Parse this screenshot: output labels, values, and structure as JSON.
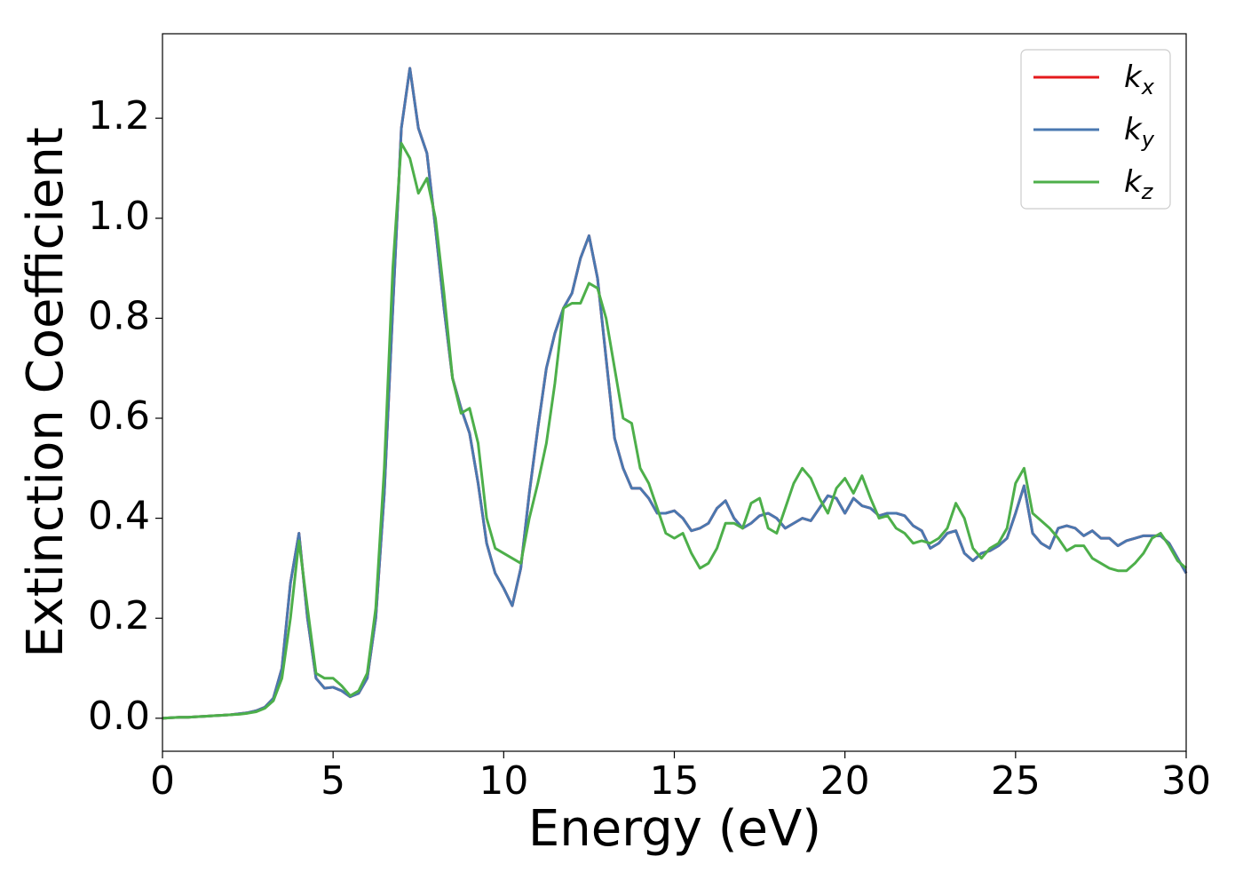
{
  "chart_data": {
    "type": "line",
    "xlabel": "Energy (eV)",
    "ylabel": "Extinction Coefficient",
    "xlim": [
      0,
      30
    ],
    "ylim": [
      -0.066,
      1.369
    ],
    "xticks": [
      0,
      5,
      10,
      15,
      20,
      25,
      30
    ],
    "yticks": [
      {
        "value": 0,
        "label": "0.0"
      },
      0.2,
      0.4,
      0.6,
      0.8,
      {
        "value": 1,
        "label": "1.0"
      },
      1.2
    ],
    "legend": "upper right",
    "grid": false,
    "x": [
      0,
      0.25,
      0.5,
      0.75,
      1,
      1.25,
      1.5,
      1.75,
      2,
      2.25,
      2.5,
      2.75,
      3,
      3.25,
      3.5,
      3.75,
      4,
      4.25,
      4.5,
      4.75,
      5,
      5.25,
      5.5,
      5.75,
      6,
      6.25,
      6.5,
      6.75,
      7,
      7.25,
      7.5,
      7.75,
      8,
      8.25,
      8.5,
      8.75,
      9,
      9.25,
      9.5,
      9.75,
      10,
      10.25,
      10.5,
      10.75,
      11,
      11.25,
      11.5,
      11.75,
      12,
      12.25,
      12.5,
      12.75,
      13,
      13.25,
      13.5,
      13.75,
      14,
      14.25,
      14.5,
      14.75,
      15,
      15.25,
      15.5,
      15.75,
      16,
      16.25,
      16.5,
      16.75,
      17,
      17.25,
      17.5,
      17.75,
      18,
      18.25,
      18.5,
      18.75,
      19,
      19.25,
      19.5,
      19.75,
      20,
      20.25,
      20.5,
      20.75,
      21,
      21.25,
      21.5,
      21.75,
      22,
      22.25,
      22.5,
      22.75,
      23,
      23.25,
      23.5,
      23.75,
      24,
      24.25,
      24.5,
      24.75,
      25,
      25.25,
      25.5,
      25.75,
      26,
      26.25,
      26.5,
      26.75,
      27,
      27.25,
      27.5,
      27.75,
      28,
      28.25,
      28.5,
      28.75,
      29,
      29.25,
      29.5,
      29.75,
      30
    ],
    "series": [
      {
        "name": "kx",
        "color": "#e41a1c",
        "values": [
          0,
          0.001,
          0.002,
          0.002,
          0.003,
          0.004,
          0.005,
          0.006,
          0.007,
          0.009,
          0.011,
          0.015,
          0.022,
          0.04,
          0.1,
          0.27,
          0.37,
          0.2,
          0.08,
          0.06,
          0.062,
          0.055,
          0.043,
          0.05,
          0.08,
          0.2,
          0.45,
          0.82,
          1.18,
          1.3,
          1.18,
          1.13,
          0.98,
          0.82,
          0.68,
          0.62,
          0.57,
          0.47,
          0.35,
          0.29,
          0.26,
          0.225,
          0.3,
          0.45,
          0.58,
          0.7,
          0.77,
          0.82,
          0.85,
          0.92,
          0.965,
          0.88,
          0.72,
          0.56,
          0.5,
          0.46,
          0.46,
          0.44,
          0.41,
          0.41,
          0.415,
          0.4,
          0.375,
          0.38,
          0.39,
          0.42,
          0.435,
          0.4,
          0.38,
          0.39,
          0.405,
          0.41,
          0.4,
          0.38,
          0.39,
          0.4,
          0.395,
          0.42,
          0.445,
          0.44,
          0.41,
          0.44,
          0.425,
          0.42,
          0.405,
          0.41,
          0.41,
          0.405,
          0.385,
          0.375,
          0.34,
          0.35,
          0.37,
          0.375,
          0.33,
          0.315,
          0.33,
          0.335,
          0.345,
          0.36,
          0.41,
          0.465,
          0.37,
          0.35,
          0.34,
          0.38,
          0.385,
          0.38,
          0.365,
          0.375,
          0.36,
          0.36,
          0.345,
          0.355,
          0.36,
          0.365,
          0.365,
          0.365,
          0.35,
          0.32,
          0.29
        ]
      },
      {
        "name": "ky",
        "color": "#4a78b0",
        "values": [
          0,
          0.001,
          0.002,
          0.002,
          0.003,
          0.004,
          0.005,
          0.006,
          0.007,
          0.009,
          0.011,
          0.015,
          0.022,
          0.04,
          0.1,
          0.27,
          0.37,
          0.2,
          0.08,
          0.06,
          0.062,
          0.055,
          0.043,
          0.05,
          0.08,
          0.2,
          0.45,
          0.82,
          1.18,
          1.3,
          1.18,
          1.13,
          0.98,
          0.82,
          0.68,
          0.62,
          0.57,
          0.47,
          0.35,
          0.29,
          0.26,
          0.225,
          0.3,
          0.45,
          0.58,
          0.7,
          0.77,
          0.82,
          0.85,
          0.92,
          0.965,
          0.88,
          0.72,
          0.56,
          0.5,
          0.46,
          0.46,
          0.44,
          0.41,
          0.41,
          0.415,
          0.4,
          0.375,
          0.38,
          0.39,
          0.42,
          0.435,
          0.4,
          0.38,
          0.39,
          0.405,
          0.41,
          0.4,
          0.38,
          0.39,
          0.4,
          0.395,
          0.42,
          0.445,
          0.44,
          0.41,
          0.44,
          0.425,
          0.42,
          0.405,
          0.41,
          0.41,
          0.405,
          0.385,
          0.375,
          0.34,
          0.35,
          0.37,
          0.375,
          0.33,
          0.315,
          0.33,
          0.335,
          0.345,
          0.36,
          0.41,
          0.465,
          0.37,
          0.35,
          0.34,
          0.38,
          0.385,
          0.38,
          0.365,
          0.375,
          0.36,
          0.36,
          0.345,
          0.355,
          0.36,
          0.365,
          0.365,
          0.365,
          0.35,
          0.32,
          0.29
        ]
      },
      {
        "name": "kz",
        "color": "#4daf4a",
        "values": [
          0,
          0.001,
          0.002,
          0.002,
          0.003,
          0.004,
          0.005,
          0.006,
          0.007,
          0.008,
          0.01,
          0.013,
          0.02,
          0.035,
          0.08,
          0.2,
          0.355,
          0.22,
          0.09,
          0.08,
          0.08,
          0.065,
          0.045,
          0.055,
          0.09,
          0.22,
          0.5,
          0.9,
          1.15,
          1.12,
          1.05,
          1.08,
          1.0,
          0.85,
          0.68,
          0.61,
          0.62,
          0.55,
          0.4,
          0.34,
          0.33,
          0.32,
          0.31,
          0.4,
          0.47,
          0.55,
          0.67,
          0.82,
          0.83,
          0.83,
          0.87,
          0.86,
          0.8,
          0.7,
          0.6,
          0.59,
          0.5,
          0.47,
          0.42,
          0.37,
          0.36,
          0.37,
          0.33,
          0.3,
          0.31,
          0.34,
          0.39,
          0.39,
          0.38,
          0.43,
          0.44,
          0.38,
          0.37,
          0.42,
          0.47,
          0.5,
          0.48,
          0.44,
          0.41,
          0.46,
          0.48,
          0.45,
          0.485,
          0.44,
          0.4,
          0.405,
          0.38,
          0.37,
          0.35,
          0.355,
          0.35,
          0.36,
          0.38,
          0.43,
          0.4,
          0.34,
          0.32,
          0.34,
          0.35,
          0.38,
          0.47,
          0.5,
          0.41,
          0.395,
          0.38,
          0.36,
          0.335,
          0.345,
          0.345,
          0.32,
          0.31,
          0.3,
          0.295,
          0.295,
          0.31,
          0.33,
          0.36,
          0.37,
          0.345,
          0.315,
          0.3
        ]
      }
    ]
  }
}
